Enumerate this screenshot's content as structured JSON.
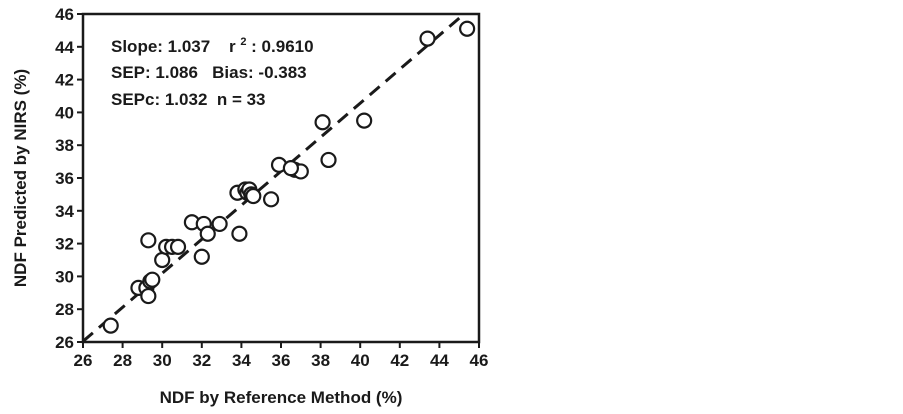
{
  "chart_data": {
    "type": "scatter",
    "xlabel": "NDF by Reference Method  (%)",
    "ylabel": "NDF Predicted by NIRS  (%)",
    "xlim": [
      26,
      46
    ],
    "ylim": [
      26,
      46
    ],
    "xticks": [
      "26",
      "28",
      "30",
      "32",
      "34",
      "36",
      "38",
      "40",
      "42",
      "44",
      "46"
    ],
    "yticks": [
      "26",
      "28",
      "30",
      "32",
      "34",
      "36",
      "38",
      "40",
      "42",
      "44",
      "46"
    ],
    "grid": false,
    "legend": "none",
    "annotations": [
      [
        "Slope: 1.037",
        "r",
        "2",
        ": 0.9610"
      ],
      [
        "SEP: 1.086   Bias: -0.383"
      ],
      [
        "SEPc: 1.032  n = 33"
      ]
    ],
    "fit_line": {
      "style": "dashed",
      "slope": 1.037,
      "intercept": -0.92
    },
    "points": [
      [
        27.4,
        27.0
      ],
      [
        28.8,
        29.3
      ],
      [
        29.2,
        29.3
      ],
      [
        29.3,
        28.8
      ],
      [
        29.4,
        29.7
      ],
      [
        29.3,
        32.2
      ],
      [
        30.0,
        31.0
      ],
      [
        30.2,
        31.8
      ],
      [
        30.5,
        31.8
      ],
      [
        30.8,
        31.8
      ],
      [
        31.5,
        33.3
      ],
      [
        32.0,
        31.2
      ],
      [
        32.1,
        33.2
      ],
      [
        32.3,
        32.6
      ],
      [
        32.9,
        33.2
      ],
      [
        33.8,
        35.1
      ],
      [
        33.9,
        32.6
      ],
      [
        34.2,
        35.3
      ],
      [
        34.3,
        35.1
      ],
      [
        34.4,
        35.3
      ],
      [
        34.5,
        35.0
      ],
      [
        35.5,
        34.7
      ],
      [
        35.9,
        36.8
      ],
      [
        36.7,
        36.5
      ],
      [
        37.0,
        36.4
      ],
      [
        38.1,
        39.4
      ],
      [
        38.4,
        37.1
      ],
      [
        40.2,
        39.5
      ],
      [
        43.4,
        44.5
      ],
      [
        45.4,
        45.1
      ],
      [
        34.6,
        34.9
      ],
      [
        36.5,
        36.6
      ],
      [
        29.5,
        29.8
      ]
    ]
  },
  "colors": {
    "axis": "#1a1a1a",
    "marker_stroke": "#1a1a1a",
    "marker_fill": "#ffffff",
    "line": "#1a1a1a"
  }
}
